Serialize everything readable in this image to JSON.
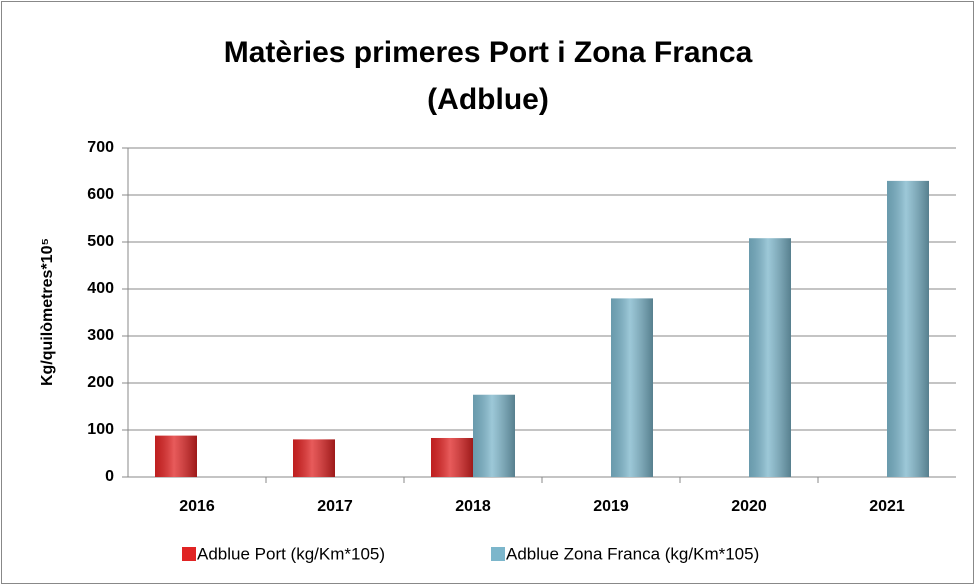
{
  "chart_data": {
    "type": "bar",
    "title": [
      "Matèries primeres Port i Zona Franca",
      "(Adblue)"
    ],
    "y_label": "Kg/quilòmetres*10⁵",
    "categories": [
      "2016",
      "2017",
      "2018",
      "2019",
      "2020",
      "2021"
    ],
    "series": [
      {
        "name": "Adblue Port (kg/Km*105)",
        "color": "#e02424",
        "values": [
          88,
          80,
          83,
          null,
          null,
          null
        ]
      },
      {
        "name": "Adblue Zona Franca (kg/Km*105)",
        "color": "#7cb6cb",
        "values": [
          null,
          null,
          175,
          380,
          508,
          630
        ]
      }
    ],
    "ylim": [
      0,
      700
    ],
    "yticks": [
      0,
      100,
      200,
      300,
      400,
      500,
      600,
      700
    ],
    "grid": true,
    "legend": "bottom"
  }
}
